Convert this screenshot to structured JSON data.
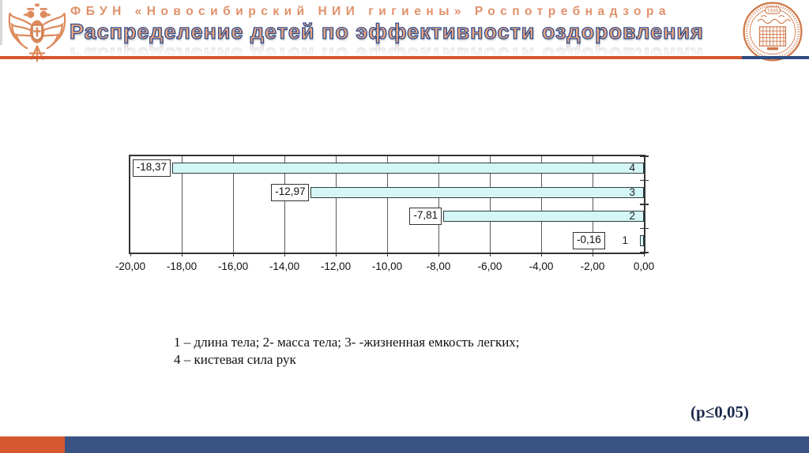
{
  "slide": {
    "background": "#ffffff",
    "accent_orange": "#d4592f",
    "accent_navy": "#3a5284",
    "title_fill": "#efa77d",
    "title_outline": "#2d4c8e"
  },
  "header": {
    "institution_line": "ФБУН «Новосибирский НИИ гигиены» Роспотребнадзора",
    "title": "Распределение детей по эффективности оздоровления",
    "seal_year": "1930",
    "left_logo": "rospotrebnadzor-eagle-emblem",
    "right_logo": "institute-round-seal"
  },
  "chart_data": {
    "type": "bar",
    "orientation": "horizontal",
    "categories": [
      "4",
      "3",
      "2",
      "1"
    ],
    "values": [
      -18.37,
      -12.97,
      -7.81,
      -0.16
    ],
    "value_labels": [
      "-18,37",
      "-12,97",
      "-7,81",
      "-0,16"
    ],
    "xlim": [
      -20,
      0
    ],
    "x_tick_step": 2,
    "x_tick_labels": [
      "-20,00",
      "-18,00",
      "-16,00",
      "-14,00",
      "-12,00",
      "-10,00",
      "-8,00",
      "-6,00",
      "-4,00",
      "-2,00",
      "0,00"
    ],
    "grid": true,
    "legend_position": "none",
    "bar_fill": "#d4f6f6",
    "bar_border": "#2f3e3e",
    "title": "",
    "xlabel": "",
    "ylabel": ""
  },
  "caption": {
    "line1": "1 – длина тела; 2- масса тела; 3- -жизненная емкость легких;",
    "line2": "4 – кистевая сила рук"
  },
  "footnote": "(p≤0,05)"
}
